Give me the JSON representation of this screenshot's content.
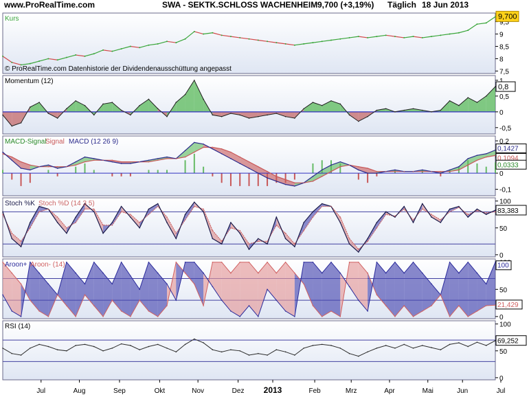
{
  "header": {
    "site": "www.ProRealTime.com",
    "symbol": "SWA - SEKTK.SCHLOSS WACHENHEIM",
    "price_change": "9,700 (+3,19%)",
    "period": "Täglich",
    "date": "18 Jun 2013"
  },
  "colors": {
    "panel_bg_top": "#ffffff",
    "panel_bg_bottom": "#dfe6f3",
    "kurs_up": "#3aa63a",
    "kurs_down": "#d14848",
    "momentum_line": "#202020",
    "positive_fill": "#5ab95a",
    "negative_fill": "#c46a6a",
    "macd_line": "#2b2b8c",
    "signal_line": "#c85858",
    "histogram": "#66bb66",
    "stoch_k": "#1a1a4a",
    "stoch_d": "#cc6666",
    "aroon_up": "#2a2a9a",
    "aroon_down": "#d06060",
    "rsi_line": "#2a2a2a",
    "level_line": "#4040a0",
    "zero_line": "#3030c0",
    "badge_kurs": "#ffd21a"
  },
  "x_axis": {
    "labels": [
      "Jul",
      "Aug",
      "Sep",
      "Okt",
      "Nov",
      "Dez",
      "2013",
      "Feb",
      "Mrz",
      "Apr",
      "Mai",
      "Jun",
      "Jul"
    ],
    "bold_label": "2013"
  },
  "chart_data": [
    {
      "id": "kurs",
      "type": "line",
      "title": "Kurs",
      "yticks": [
        "9,5",
        "9",
        "8,5",
        "8",
        "7,5"
      ],
      "tick_values": [
        9.5,
        9,
        8.5,
        8,
        7.5
      ],
      "ylim": [
        7.4,
        9.85
      ],
      "last_value": "9,700",
      "note": "© ProRealTime.com Datenhistorie der Dividendenausschüttung angepasst",
      "x": [
        0,
        5,
        10,
        15,
        20,
        25,
        30,
        35,
        40,
        45,
        50,
        55,
        60,
        65,
        70,
        75,
        80,
        85,
        90,
        95,
        100,
        105,
        110,
        115,
        120,
        125,
        130,
        135,
        140,
        145,
        150,
        155,
        160,
        165,
        170,
        175,
        180,
        185,
        190,
        195,
        200,
        205,
        210,
        215,
        220,
        225,
        230,
        235,
        240,
        245,
        250,
        255,
        260,
        265,
        270
      ],
      "values": [
        8.1,
        7.85,
        7.75,
        7.8,
        7.9,
        8.0,
        7.95,
        8.05,
        8.15,
        8.1,
        8.2,
        8.35,
        8.3,
        8.4,
        8.5,
        8.45,
        8.55,
        8.6,
        8.7,
        8.65,
        8.8,
        9.1,
        9.0,
        9.05,
        8.95,
        8.9,
        8.85,
        8.8,
        8.75,
        8.7,
        8.65,
        8.6,
        8.55,
        8.6,
        8.65,
        8.7,
        8.75,
        8.8,
        8.85,
        8.9,
        8.85,
        8.9,
        8.95,
        8.9,
        8.85,
        8.9,
        8.85,
        8.9,
        8.95,
        9.0,
        9.05,
        9.15,
        9.4,
        9.45,
        9.7
      ]
    },
    {
      "id": "momentum",
      "type": "area",
      "title": "Momentum (12)",
      "yticks": [
        "1",
        "0,5",
        "0",
        "-0,5"
      ],
      "tick_values": [
        1,
        0.5,
        0,
        -0.5
      ],
      "ylim": [
        -0.7,
        1.15
      ],
      "last_value": "0,8",
      "x": [
        0,
        5,
        10,
        15,
        20,
        25,
        30,
        35,
        40,
        45,
        50,
        55,
        60,
        65,
        70,
        75,
        80,
        85,
        90,
        95,
        100,
        105,
        110,
        115,
        120,
        125,
        130,
        135,
        140,
        145,
        150,
        155,
        160,
        165,
        170,
        175,
        180,
        185,
        190,
        195,
        200,
        205,
        210,
        215,
        220,
        225,
        230,
        235,
        240,
        245,
        250,
        255,
        260,
        265,
        270
      ],
      "values": [
        -0.1,
        -0.45,
        -0.35,
        0.15,
        0.3,
        -0.05,
        -0.2,
        0.1,
        0.35,
        0.2,
        -0.1,
        0.25,
        0.3,
        0.05,
        -0.1,
        0.2,
        0.4,
        0.1,
        -0.15,
        0.3,
        0.55,
        1.0,
        0.4,
        -0.1,
        -0.15,
        -0.05,
        -0.1,
        -0.2,
        -0.15,
        -0.1,
        -0.05,
        -0.15,
        -0.2,
        0.1,
        0.3,
        0.2,
        0.35,
        0.25,
        -0.1,
        -0.3,
        -0.15,
        0.05,
        0.1,
        0.0,
        0.05,
        0.1,
        0.05,
        0.0,
        0.05,
        0.35,
        0.2,
        0.45,
        0.3,
        0.5,
        0.8
      ]
    },
    {
      "id": "macd",
      "type": "line",
      "title": "MACD (12 26 9)",
      "legend": [
        "MACD-Signal",
        "Signal",
        "MACD (12 26 9)"
      ],
      "yticks": [
        "0,2",
        "0,1",
        "0",
        "-0,1"
      ],
      "tick_values": [
        0.2,
        0.1,
        0,
        -0.1
      ],
      "ylim": [
        -0.14,
        0.23
      ],
      "last_values": [
        "0,1427",
        "0,1094",
        "0,0333"
      ],
      "x": [
        0,
        5,
        10,
        15,
        20,
        25,
        30,
        35,
        40,
        45,
        50,
        55,
        60,
        65,
        70,
        75,
        80,
        85,
        90,
        95,
        100,
        105,
        110,
        115,
        120,
        125,
        130,
        135,
        140,
        145,
        150,
        155,
        160,
        165,
        170,
        175,
        180,
        185,
        190,
        195,
        200,
        205,
        210,
        215,
        220,
        225,
        230,
        235,
        240,
        245,
        250,
        255,
        260,
        265,
        270
      ],
      "series": [
        {
          "name": "MACD (12 26 9)",
          "values": [
            0.13,
            0.08,
            0.03,
            0.02,
            0.04,
            0.05,
            0.03,
            0.04,
            0.07,
            0.1,
            0.09,
            0.08,
            0.07,
            0.06,
            0.06,
            0.07,
            0.08,
            0.09,
            0.1,
            0.09,
            0.14,
            0.19,
            0.18,
            0.15,
            0.12,
            0.09,
            0.06,
            0.03,
            0.0,
            -0.03,
            -0.05,
            -0.07,
            -0.08,
            -0.06,
            -0.02,
            0.02,
            0.05,
            0.07,
            0.05,
            0.02,
            0.0,
            0.0,
            0.01,
            0.02,
            0.01,
            0.01,
            0.02,
            0.01,
            0.0,
            0.02,
            0.04,
            0.09,
            0.11,
            0.12,
            0.1427
          ]
        },
        {
          "name": "Signal",
          "values": [
            0.12,
            0.1,
            0.07,
            0.05,
            0.04,
            0.04,
            0.04,
            0.04,
            0.05,
            0.07,
            0.08,
            0.08,
            0.08,
            0.07,
            0.07,
            0.07,
            0.07,
            0.08,
            0.09,
            0.09,
            0.1,
            0.13,
            0.16,
            0.16,
            0.15,
            0.13,
            0.1,
            0.07,
            0.04,
            0.01,
            -0.02,
            -0.04,
            -0.06,
            -0.06,
            -0.05,
            -0.02,
            0.01,
            0.04,
            0.05,
            0.04,
            0.03,
            0.01,
            0.01,
            0.01,
            0.01,
            0.01,
            0.01,
            0.01,
            0.01,
            0.01,
            0.02,
            0.05,
            0.08,
            0.1,
            0.1094
          ]
        }
      ]
    },
    {
      "id": "stoch",
      "type": "line",
      "title": "Stoch %K Stoch %D (14 3 5)",
      "legend": [
        "Stoch %K",
        "Stoch %D (14 3 5)"
      ],
      "yticks": [
        "100",
        "50",
        "0"
      ],
      "tick_values": [
        100,
        50,
        0
      ],
      "ylim": [
        -4,
        106
      ],
      "levels": [
        80,
        20
      ],
      "last_value": "83,383",
      "x": [
        0,
        5,
        10,
        15,
        20,
        25,
        30,
        35,
        40,
        45,
        50,
        55,
        60,
        65,
        70,
        75,
        80,
        85,
        90,
        95,
        100,
        105,
        110,
        115,
        120,
        125,
        130,
        135,
        140,
        145,
        150,
        155,
        160,
        165,
        170,
        175,
        180,
        185,
        190,
        195,
        200,
        205,
        210,
        215,
        220,
        225,
        230,
        235,
        240,
        245,
        250,
        255,
        260,
        265,
        270
      ],
      "series": [
        {
          "name": "Stoch %K",
          "values": [
            80,
            30,
            15,
            60,
            90,
            85,
            60,
            40,
            70,
            95,
            80,
            40,
            60,
            90,
            70,
            50,
            85,
            95,
            60,
            30,
            75,
            98,
            80,
            30,
            20,
            60,
            40,
            10,
            30,
            20,
            70,
            30,
            15,
            60,
            80,
            95,
            90,
            60,
            20,
            5,
            30,
            60,
            80,
            70,
            90,
            60,
            95,
            70,
            60,
            85,
            90,
            70,
            85,
            75,
            83
          ]
        },
        {
          "name": "Stoch %D (14 3 5)",
          "values": [
            75,
            40,
            25,
            50,
            80,
            85,
            70,
            50,
            60,
            85,
            85,
            55,
            55,
            80,
            75,
            60,
            75,
            90,
            70,
            40,
            65,
            90,
            85,
            45,
            25,
            50,
            45,
            20,
            25,
            25,
            55,
            40,
            20,
            45,
            70,
            90,
            90,
            70,
            30,
            10,
            25,
            50,
            75,
            72,
            85,
            65,
            85,
            75,
            65,
            80,
            88,
            75,
            82,
            78,
            80
          ]
        }
      ]
    },
    {
      "id": "aroon",
      "type": "area",
      "title": "Aroon+ Aroon- (14)",
      "legend": [
        "Aroon+",
        "Aroon- (14)"
      ],
      "yticks": [
        "100",
        "50",
        "0"
      ],
      "tick_values": [
        100,
        50,
        0
      ],
      "ylim": [
        -4,
        106
      ],
      "levels": [
        70,
        30
      ],
      "last_values": [
        "100",
        "21,429"
      ],
      "x": [
        0,
        5,
        10,
        15,
        20,
        25,
        30,
        35,
        40,
        45,
        50,
        55,
        60,
        65,
        70,
        75,
        80,
        85,
        90,
        95,
        100,
        105,
        110,
        115,
        120,
        125,
        130,
        135,
        140,
        145,
        150,
        155,
        160,
        165,
        170,
        175,
        180,
        185,
        190,
        195,
        200,
        205,
        210,
        215,
        220,
        225,
        230,
        235,
        240,
        245,
        250,
        255,
        260,
        265,
        270
      ],
      "series": [
        {
          "name": "Aroon+",
          "values": [
            40,
            10,
            0,
            100,
            80,
            60,
            40,
            100,
            80,
            60,
            100,
            80,
            60,
            100,
            75,
            50,
            100,
            80,
            60,
            30,
            100,
            100,
            80,
            55,
            30,
            10,
            0,
            20,
            0,
            50,
            30,
            10,
            0,
            100,
            100,
            80,
            100,
            80,
            55,
            30,
            10,
            100,
            80,
            100,
            80,
            100,
            80,
            60,
            40,
            100,
            80,
            100,
            80,
            60,
            100
          ]
        },
        {
          "name": "Aroon- (14)",
          "values": [
            100,
            80,
            60,
            30,
            10,
            0,
            40,
            20,
            0,
            40,
            20,
            0,
            30,
            10,
            0,
            30,
            10,
            0,
            20,
            100,
            80,
            60,
            20,
            100,
            100,
            80,
            100,
            100,
            80,
            100,
            80,
            100,
            80,
            60,
            20,
            0,
            10,
            0,
            100,
            100,
            80,
            40,
            20,
            0,
            20,
            0,
            10,
            20,
            40,
            0,
            20,
            0,
            10,
            20,
            21
          ]
        }
      ]
    },
    {
      "id": "rsi",
      "type": "line",
      "title": "RSI (14)",
      "yticks": [
        "100",
        "50",
        "0"
      ],
      "tick_values": [
        100,
        50,
        0
      ],
      "ylim": [
        -4,
        106
      ],
      "levels": [
        70,
        30
      ],
      "last_value": "69,252",
      "x": [
        0,
        5,
        10,
        15,
        20,
        25,
        30,
        35,
        40,
        45,
        50,
        55,
        60,
        65,
        70,
        75,
        80,
        85,
        90,
        95,
        100,
        105,
        110,
        115,
        120,
        125,
        130,
        135,
        140,
        145,
        150,
        155,
        160,
        165,
        170,
        175,
        180,
        185,
        190,
        195,
        200,
        205,
        210,
        215,
        220,
        225,
        230,
        235,
        240,
        245,
        250,
        255,
        260,
        265,
        270
      ],
      "values": [
        55,
        45,
        42,
        55,
        62,
        58,
        52,
        50,
        60,
        62,
        58,
        50,
        55,
        63,
        60,
        52,
        58,
        62,
        55,
        48,
        62,
        72,
        65,
        52,
        48,
        52,
        50,
        42,
        45,
        42,
        52,
        48,
        42,
        55,
        60,
        62,
        60,
        55,
        45,
        40,
        48,
        55,
        60,
        55,
        62,
        55,
        60,
        56,
        52,
        62,
        65,
        58,
        66,
        60,
        69
      ]
    }
  ]
}
